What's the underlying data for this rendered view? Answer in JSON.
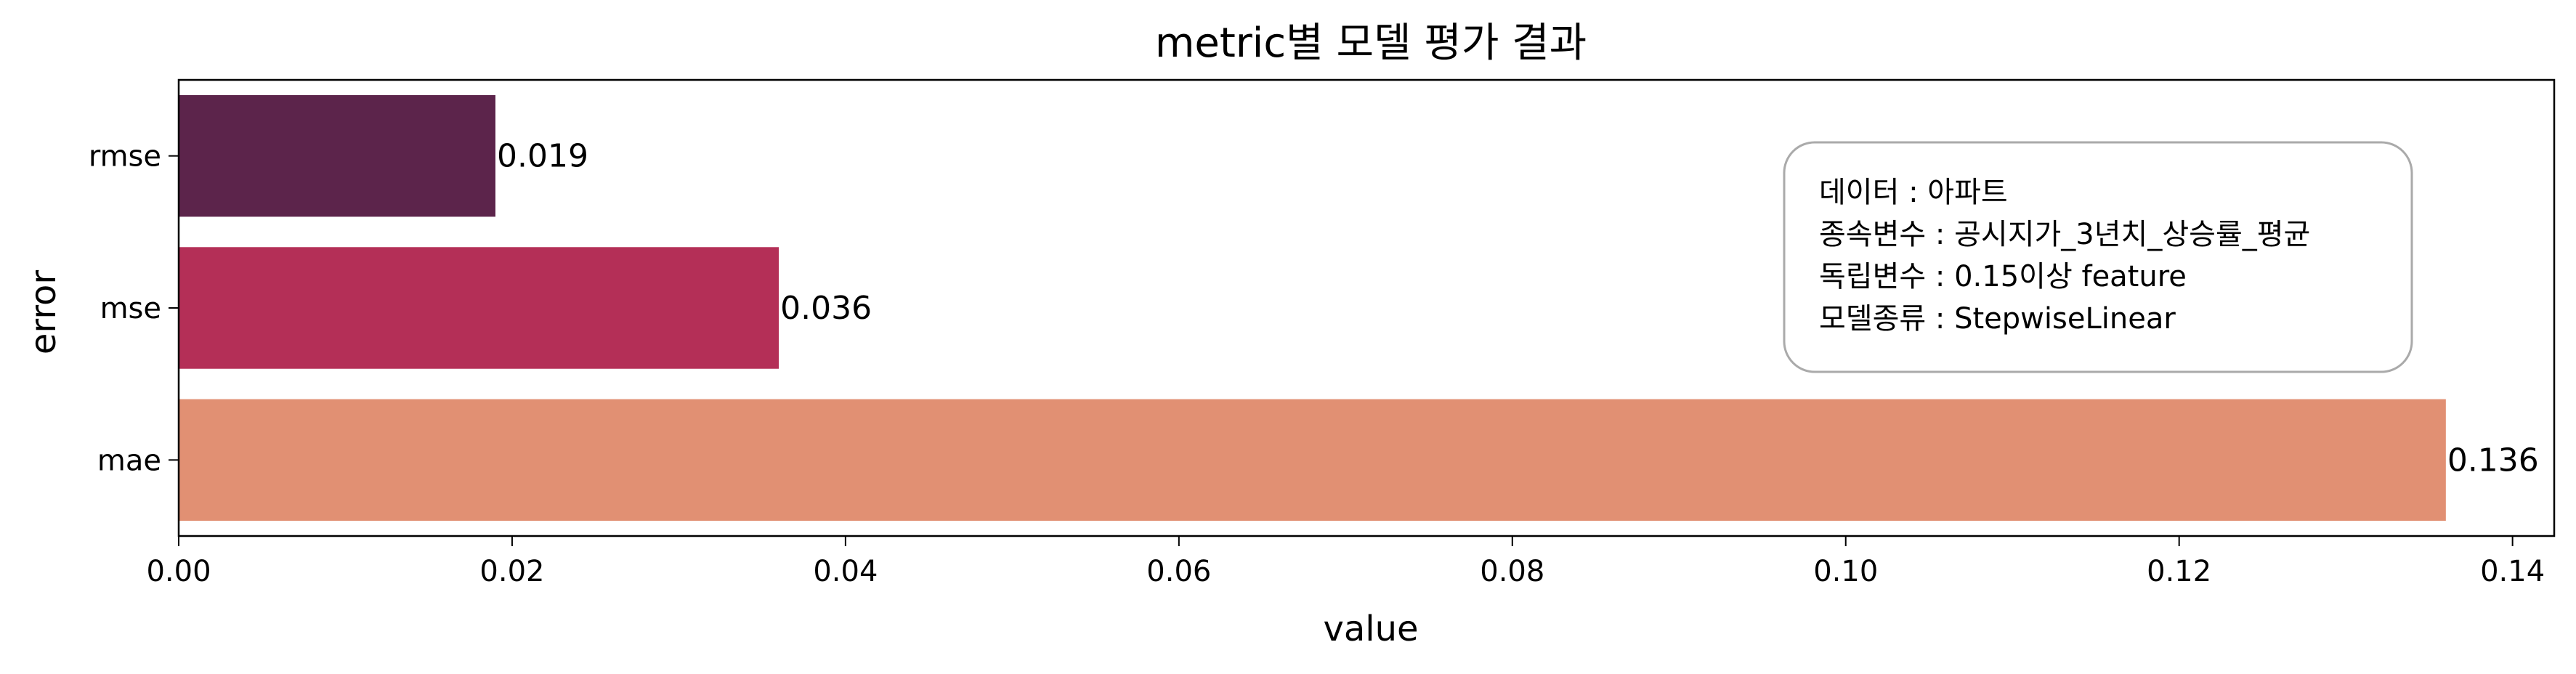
{
  "chart_data": {
    "type": "bar",
    "orientation": "horizontal",
    "title": "metric별 모델 평가 결과",
    "xlabel": "value",
    "ylabel": "error",
    "categories": [
      "rmse",
      "mse",
      "mae"
    ],
    "values": [
      0.019,
      0.036,
      0.136
    ],
    "value_labels": [
      "0.019",
      "0.036",
      "0.136"
    ],
    "xlim": [
      0,
      0.1425
    ],
    "xticks": [
      0.0,
      0.02,
      0.04,
      0.06,
      0.08,
      0.1,
      0.12,
      0.14
    ],
    "xtick_labels": [
      "0.00",
      "0.02",
      "0.04",
      "0.06",
      "0.08",
      "0.10",
      "0.12",
      "0.14"
    ],
    "colors": [
      "#5c244b",
      "#b42f57",
      "#e19073"
    ],
    "grid": false,
    "legend": null,
    "annotation": {
      "placement": "top-right",
      "lines": [
        "데이터 : 아파트",
        "종속변수 : 공시지가_3년치_상승률_평균",
        "독립변수 : 0.15이상 feature",
        "모델종류 : StepwiseLinear"
      ]
    }
  }
}
